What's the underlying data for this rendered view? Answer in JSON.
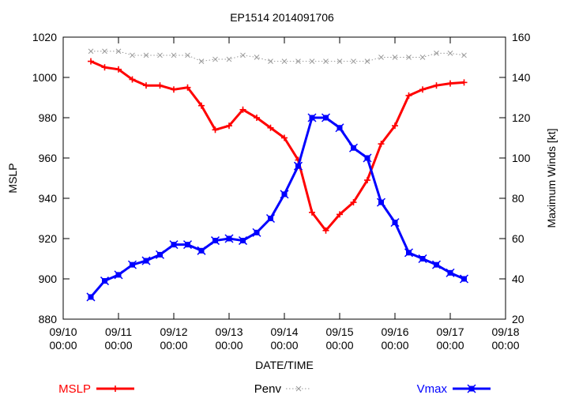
{
  "chart_data": {
    "type": "line",
    "title": "EP1514 2014091706",
    "xlabel": "DATE/TIME",
    "ylabel": "MSLP",
    "y2label": "Maximum Winds [kt]",
    "x_ticks": [
      {
        "t": 0,
        "line1": "09/10",
        "line2": "00:00"
      },
      {
        "t": 24,
        "line1": "09/11",
        "line2": "00:00"
      },
      {
        "t": 48,
        "line1": "09/12",
        "line2": "00:00"
      },
      {
        "t": 72,
        "line1": "09/13",
        "line2": "00:00"
      },
      {
        "t": 96,
        "line1": "09/14",
        "line2": "00:00"
      },
      {
        "t": 120,
        "line1": "09/15",
        "line2": "00:00"
      },
      {
        "t": 144,
        "line1": "09/16",
        "line2": "00:00"
      },
      {
        "t": 168,
        "line1": "09/17",
        "line2": "00:00"
      },
      {
        "t": 192,
        "line1": "09/18",
        "line2": "00:00"
      }
    ],
    "xlim": [
      0,
      192
    ],
    "ylim": [
      880,
      1020
    ],
    "y_ticks": [
      "880",
      "900",
      "920",
      "940",
      "960",
      "980",
      "1000",
      "1020"
    ],
    "y2lim": [
      20,
      160
    ],
    "y2_ticks": [
      "20",
      "40",
      "60",
      "80",
      "100",
      "120",
      "140",
      "160"
    ],
    "x_hours": [
      12,
      18,
      24,
      30,
      36,
      42,
      48,
      54,
      60,
      66,
      72,
      78,
      84,
      90,
      96,
      102,
      108,
      114,
      120,
      126,
      132,
      138,
      144,
      150,
      156,
      162,
      168,
      174
    ],
    "series": [
      {
        "name": "MSLP",
        "axis": "left",
        "color": "#ff0000",
        "marker": "plus",
        "values": [
          1008,
          1005,
          1004,
          999,
          996,
          996,
          994,
          995,
          986,
          974,
          976,
          984,
          980,
          975,
          970,
          959,
          933,
          924,
          932,
          938,
          949,
          967,
          976,
          991,
          994,
          996,
          997,
          997.5
        ]
      },
      {
        "name": "Penv",
        "axis": "left",
        "color": "#999999",
        "marker": "cross",
        "values": [
          1013,
          1013,
          1013,
          1011,
          1011,
          1011,
          1011,
          1011,
          1008,
          1009,
          1009,
          1011,
          1010,
          1008,
          1008,
          1008,
          1008,
          1008,
          1008,
          1008,
          1008,
          1010,
          1010,
          1010,
          1010,
          1012,
          1012,
          1011
        ]
      },
      {
        "name": "Vmax",
        "axis": "right",
        "color": "#0000ff",
        "marker": "box",
        "values": [
          31,
          39,
          42,
          47,
          49,
          52,
          57,
          57,
          54,
          59,
          60,
          59,
          63,
          70,
          82,
          96,
          120,
          120,
          115,
          105,
          100,
          78,
          68,
          53,
          50,
          47,
          43,
          40
        ]
      }
    ],
    "legend": [
      {
        "name": "MSLP",
        "position": "left"
      },
      {
        "name": "Penv",
        "position": "center"
      },
      {
        "name": "Vmax",
        "position": "right"
      }
    ],
    "grid": false
  }
}
